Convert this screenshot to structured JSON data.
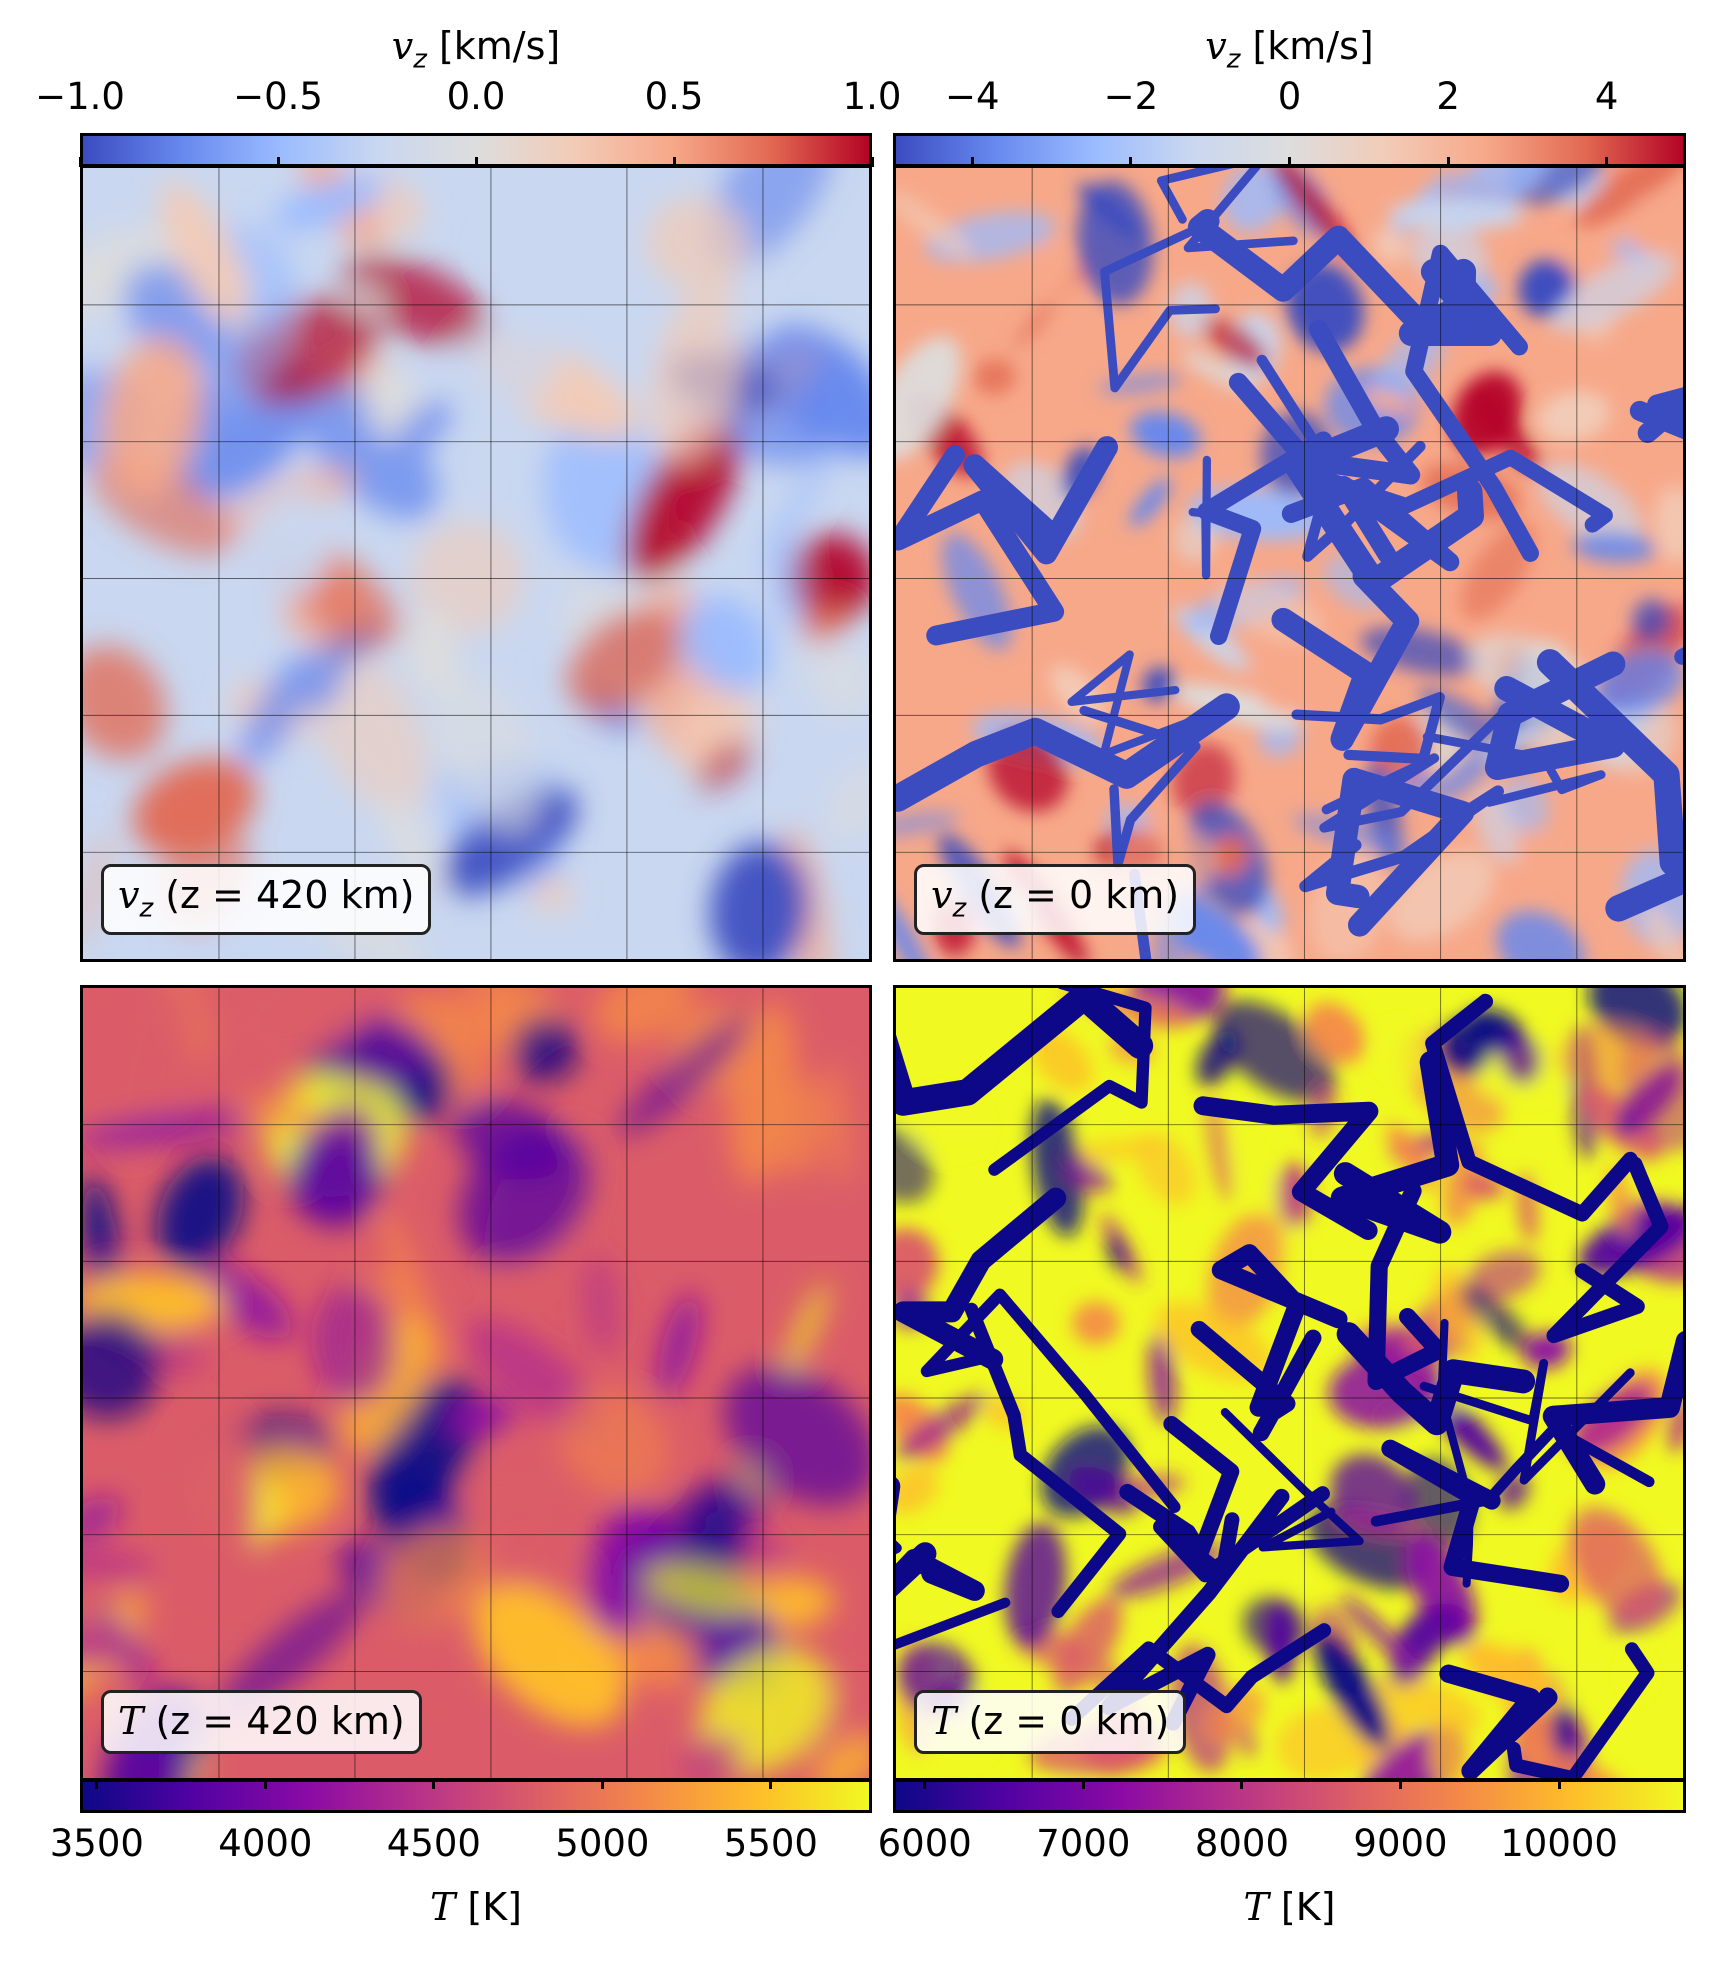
{
  "chart_data": [
    {
      "type": "heatmap",
      "panel": "top-left",
      "label": "v_z (z = 420 km)",
      "label_parts": {
        "sym": "v",
        "sub": "z",
        "rest": " (z = 420 km)"
      },
      "colorbar": {
        "position": "top",
        "label_sym": "v",
        "label_sub": "z",
        "label_unit": " [km/s]",
        "range": [
          -1.0,
          1.0
        ],
        "ticks": [
          -1.0,
          -0.5,
          0.0,
          0.5,
          1.0
        ],
        "tick_labels": [
          "−1.0",
          "−0.5",
          "0.0",
          "0.5",
          "1.0"
        ],
        "colormap": "coolwarm"
      }
    },
    {
      "type": "heatmap",
      "panel": "top-right",
      "label": "v_z (z = 0 km)",
      "label_parts": {
        "sym": "v",
        "sub": "z",
        "rest": " (z = 0 km)"
      },
      "colorbar": {
        "position": "top",
        "label_sym": "v",
        "label_sub": "z",
        "label_unit": " [km/s]",
        "range": [
          -5,
          5
        ],
        "ticks": [
          -4,
          -2,
          0,
          2,
          4
        ],
        "tick_labels": [
          "−4",
          "−2",
          "0",
          "2",
          "4"
        ],
        "colormap": "coolwarm"
      }
    },
    {
      "type": "heatmap",
      "panel": "bottom-left",
      "label": "T (z = 420 km)",
      "label_parts": {
        "sym": "T",
        "sub": "",
        "rest": " (z = 420 km)"
      },
      "colorbar": {
        "position": "bottom",
        "label_sym": "T",
        "label_sub": "",
        "label_unit": " [K]",
        "range": [
          3450,
          5800
        ],
        "ticks": [
          3500,
          4000,
          4500,
          5000,
          5500
        ],
        "tick_labels": [
          "3500",
          "4000",
          "4500",
          "5000",
          "5500"
        ],
        "colormap": "plasma"
      }
    },
    {
      "type": "heatmap",
      "panel": "bottom-right",
      "label": "T (z = 0 km)",
      "label_parts": {
        "sym": "T",
        "sub": "",
        "rest": " (z = 0 km)"
      },
      "colorbar": {
        "position": "bottom",
        "label_sym": "T",
        "label_sub": "",
        "label_unit": " [K]",
        "range": [
          5800,
          10800
        ],
        "ticks": [
          6000,
          7000,
          8000,
          9000,
          10000
        ],
        "tick_labels": [
          "6000",
          "7000",
          "8000",
          "9000",
          "10000"
        ],
        "colormap": "plasma"
      }
    }
  ]
}
